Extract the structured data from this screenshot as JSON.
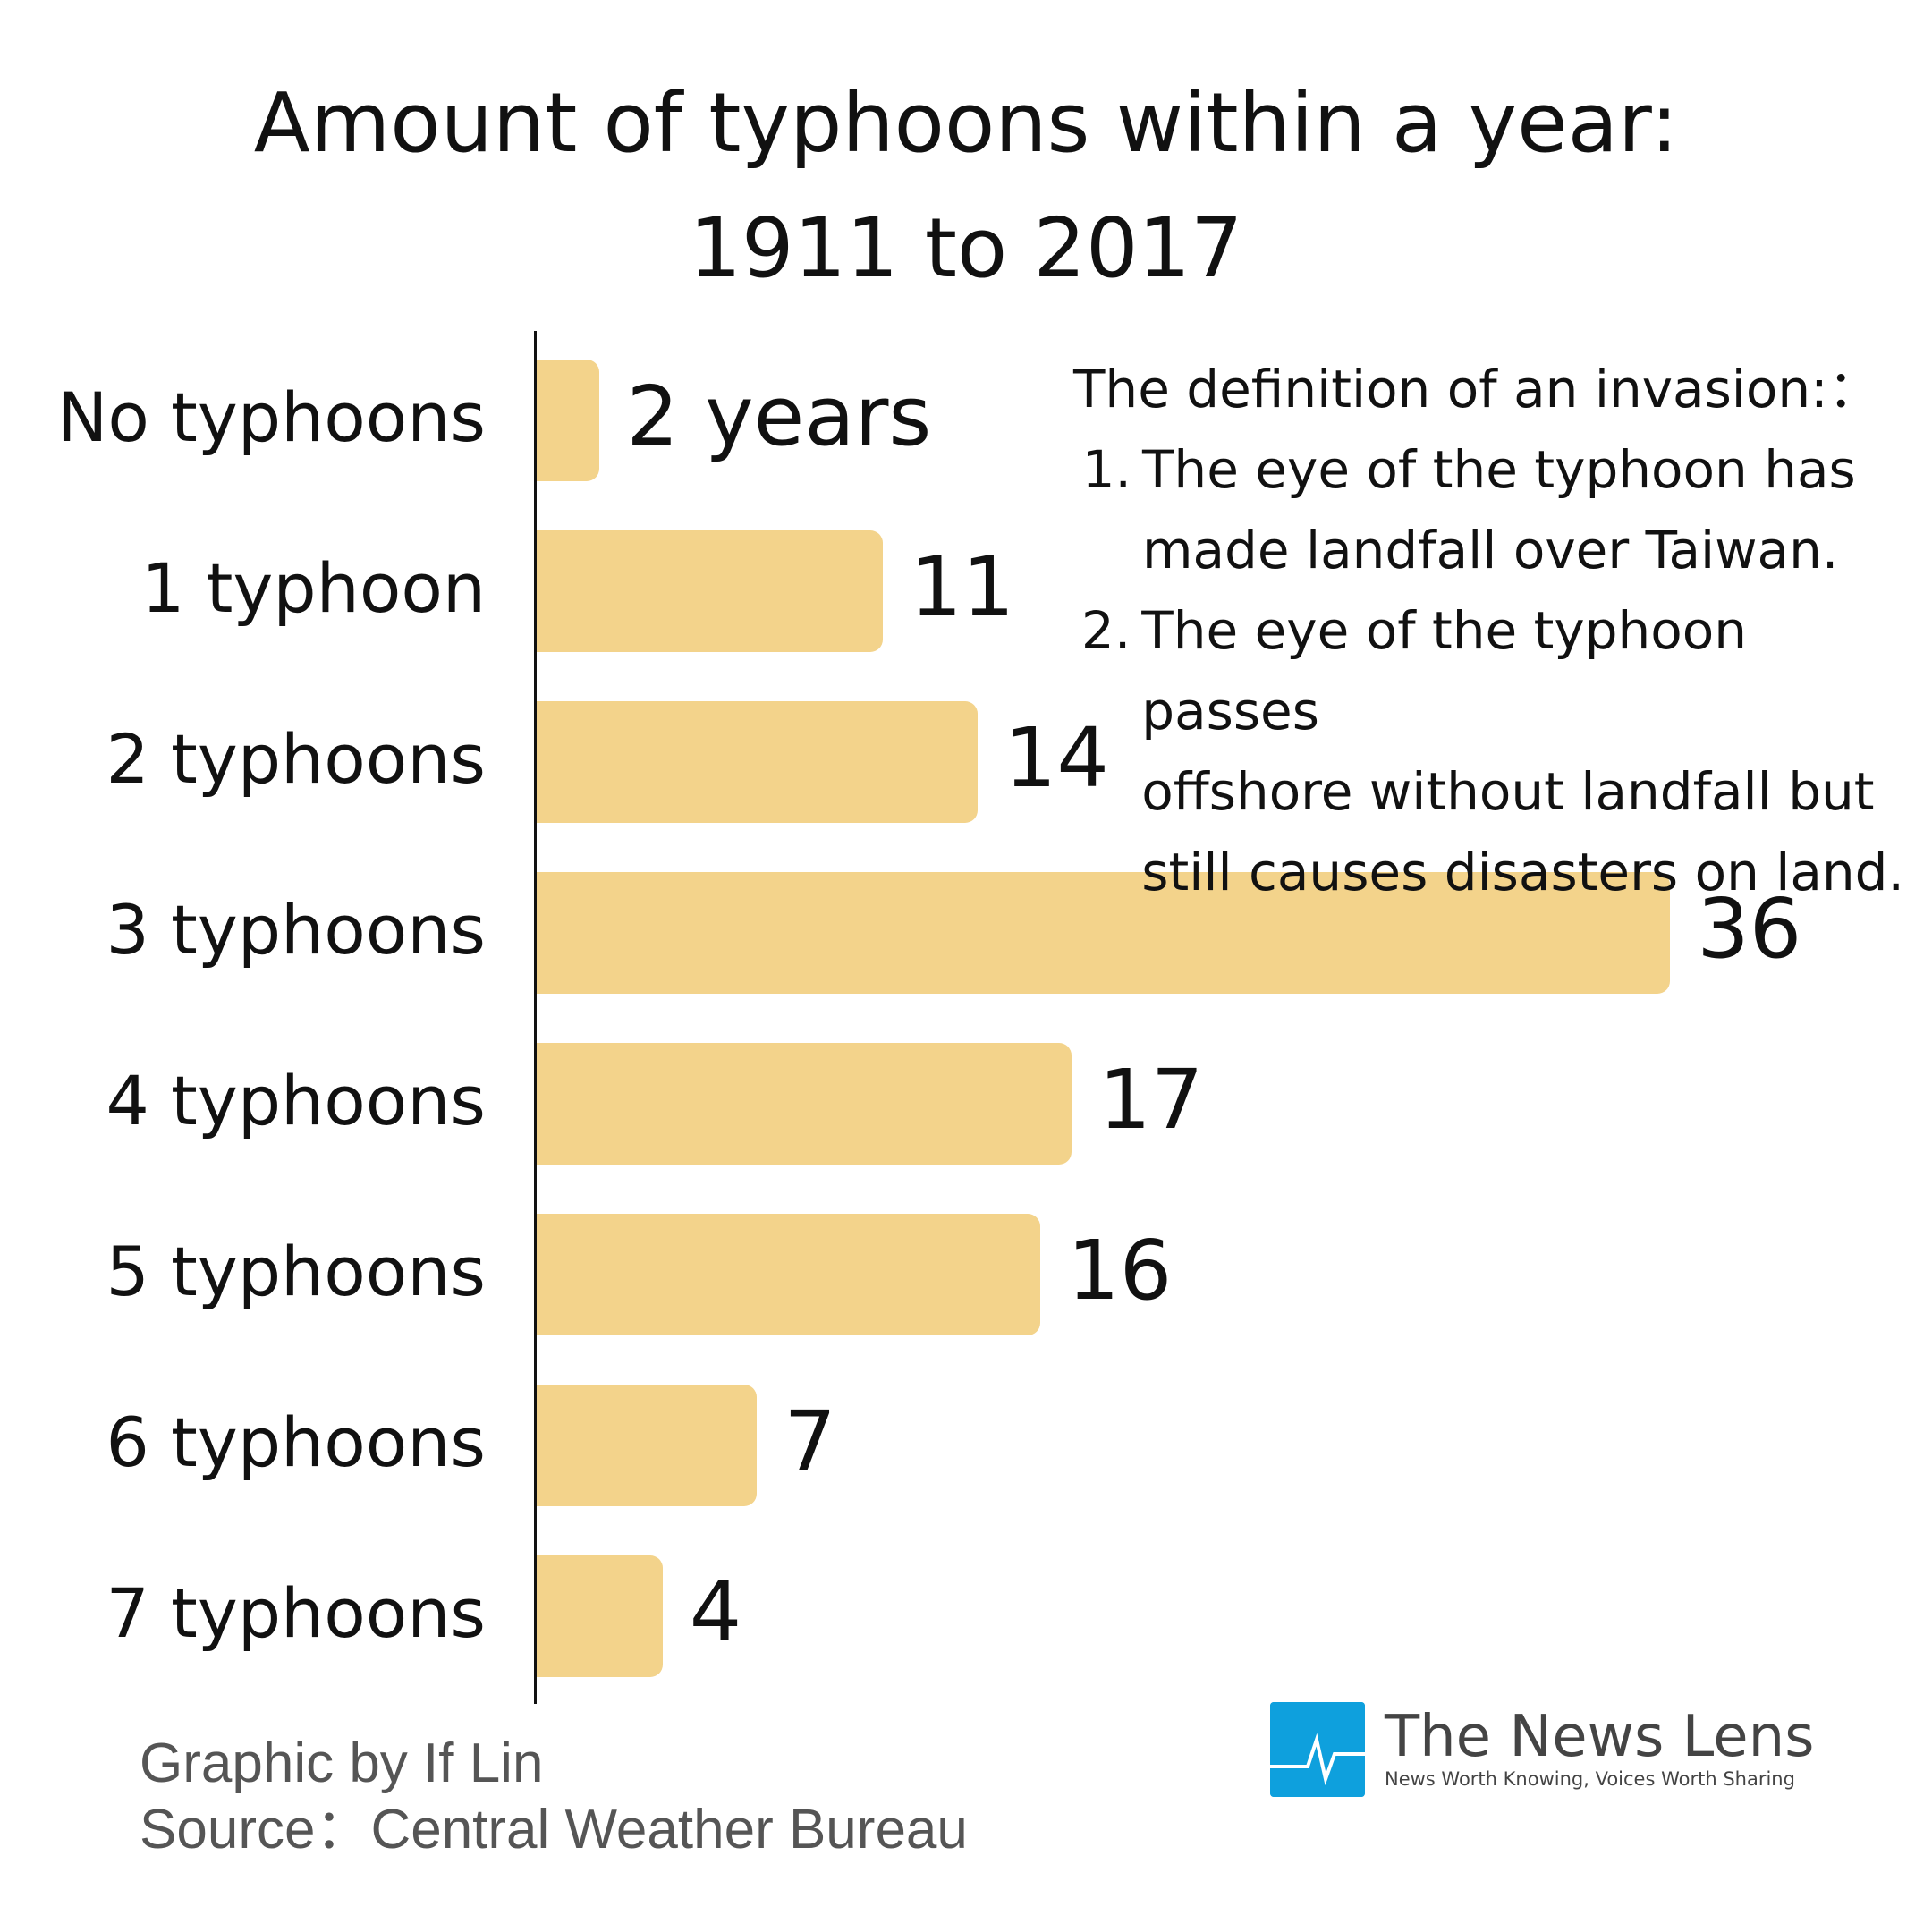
{
  "chart_data": {
    "type": "bar",
    "orientation": "horizontal",
    "title": [
      "Amount of typhoons within a year:",
      "1911 to 2017"
    ],
    "categories": [
      "No typhoons",
      "1 typhoon",
      "2 typhoons",
      "3 typhoons",
      "4 typhoons",
      "5 typhoons",
      "6 typhoons",
      "7 typhoons"
    ],
    "values": [
      2,
      11,
      14,
      36,
      17,
      16,
      7,
      4
    ],
    "data_labels": [
      "2 years",
      "11",
      "14",
      "36",
      "17",
      "16",
      "7",
      "4"
    ],
    "bar_color": "#f3d38b",
    "grid": false
  },
  "definition": {
    "heading": "The definition of an invasion:：",
    "items": [
      {
        "num": "1.",
        "lines": [
          "The eye of the typhoon has",
          "made landfall over Taiwan."
        ]
      },
      {
        "num": "2.",
        "lines": [
          "The eye of the typhoon passes",
          "offshore without landfall but",
          "still causes disasters on land."
        ]
      }
    ]
  },
  "footer": {
    "credit": "Graphic by If Lin",
    "source": "Source：Central Weather Bureau"
  },
  "logo": {
    "name": "The News Lens",
    "tagline": "News Worth Knowing, Voices Worth Sharing",
    "color": "#0ea0dd"
  }
}
